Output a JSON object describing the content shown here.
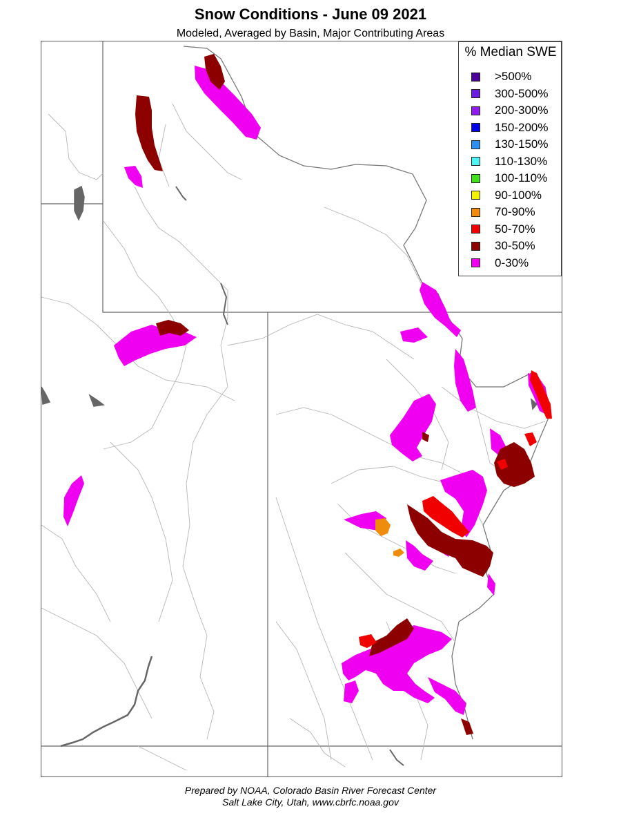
{
  "title": "Snow Conditions - June 09 2021",
  "subtitle": "Modeled, Averaged by Basin, Major Contributing Areas",
  "legend": {
    "title": "% Median SWE",
    "items": [
      {
        "label": ">500%",
        "color": "#4b0099"
      },
      {
        "label": "300-500%",
        "color": "#6a1fe0"
      },
      {
        "label": "200-300%",
        "color": "#8f1bf0"
      },
      {
        "label": "150-200%",
        "color": "#0000ee"
      },
      {
        "label": "130-150%",
        "color": "#2d8ff0"
      },
      {
        "label": "110-130%",
        "color": "#4ff4f4"
      },
      {
        "label": "100-110%",
        "color": "#44e01c"
      },
      {
        "label": "90-100%",
        "color": "#f4f400"
      },
      {
        "label": "70-90%",
        "color": "#f08c0c"
      },
      {
        "label": "50-70%",
        "color": "#f00000"
      },
      {
        "label": "30-50%",
        "color": "#8c0000"
      },
      {
        "label": "0-30%",
        "color": "#f000f0"
      }
    ]
  },
  "footer": {
    "line1": "Prepared by NOAA, Colorado Basin River Forecast Center",
    "line2": "Salt Lake City, Utah, www.cbrfc.noaa.gov"
  }
}
